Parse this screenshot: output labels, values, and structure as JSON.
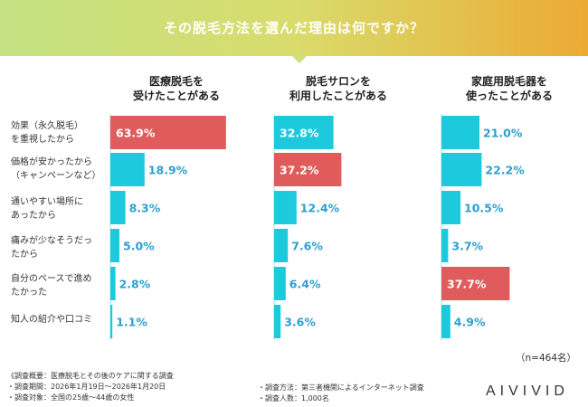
{
  "banner": {
    "title": "その脱毛方法を選んだ理由は何ですか？",
    "gradient": [
      "#c3e283",
      "#ecaa34"
    ]
  },
  "colors": {
    "bar_default": "#1cc9dd",
    "bar_highlight": "#e05c5c",
    "bar_label_default": "#ffffff",
    "bar_label_small": "#2d9fd0"
  },
  "chart_data": {
    "type": "bar",
    "orientation": "horizontal",
    "unit": "%",
    "categories": [
      [
        "効果（永久脱毛）",
        "を重視したから"
      ],
      [
        "価格が安かったから",
        "（キャンペーンなど）"
      ],
      [
        "通いやすい場所に",
        "あったから"
      ],
      [
        "痛みが少なそうだっ",
        "たから"
      ],
      [
        "自分のペースで進め",
        "たかった"
      ],
      [
        "知人の紹介や口コミ"
      ]
    ],
    "series": [
      {
        "name": [
          "医療脱毛を",
          "受けたことがある"
        ],
        "values": [
          63.9,
          18.9,
          8.3,
          5.0,
          2.8,
          1.1
        ],
        "highlight": [
          0
        ]
      },
      {
        "name": [
          "脱毛サロンを",
          "利用したことがある"
        ],
        "values": [
          32.8,
          37.2,
          12.4,
          7.6,
          6.4,
          3.6
        ],
        "highlight": [
          1
        ]
      },
      {
        "name": [
          "家庭用脱毛器を",
          "使ったことがある"
        ],
        "values": [
          21.0,
          22.2,
          10.5,
          3.7,
          37.7,
          4.9
        ],
        "highlight": [
          4
        ]
      }
    ],
    "xlim": [
      0,
      100
    ]
  },
  "sample_size": "（n=464名）",
  "footer": {
    "left": [
      "《調査概要：医療脱毛とその後のケアに関する調査",
      "・調査期間：2026年1月19日～2026年1月20日",
      "・調査対象：全国の25歳～44歳の女性"
    ],
    "mid": [
      "・調査方法：第三者機関によるインターネット調査",
      "・調査人数：1,000名"
    ]
  },
  "brand": "AIVIVID"
}
